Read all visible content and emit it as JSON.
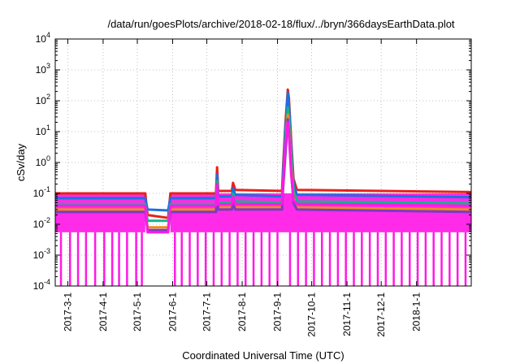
{
  "chart_data": {
    "type": "line",
    "title": "/data/run/goesPlots/archive/2018-02-18/flux/../bryn/366daysEarthData.plot",
    "xlabel": "Coordinated Universal Time (UTC)",
    "ylabel": "cSv/day",
    "yscale": "log",
    "ylim": [
      0.0001,
      10000
    ],
    "xlim": [
      "2017-02-18",
      "2018-02-18"
    ],
    "grid": true,
    "y_ticks": [
      {
        "base": "10",
        "exp": "-4",
        "value": 0.0001
      },
      {
        "base": "10",
        "exp": "-3",
        "value": 0.001
      },
      {
        "base": "10",
        "exp": "-2",
        "value": 0.01
      },
      {
        "base": "10",
        "exp": "-1",
        "value": 0.1
      },
      {
        "base": "10",
        "exp": "0",
        "value": 1
      },
      {
        "base": "10",
        "exp": "1",
        "value": 10
      },
      {
        "base": "10",
        "exp": "2",
        "value": 100
      },
      {
        "base": "10",
        "exp": "3",
        "value": 1000
      },
      {
        "base": "10",
        "exp": "4",
        "value": 10000
      }
    ],
    "x_ticks": [
      {
        "label": "2017-3-1",
        "date": "2017-03-01"
      },
      {
        "label": "2017-4-1",
        "date": "2017-04-01"
      },
      {
        "label": "2017-5-1",
        "date": "2017-05-01"
      },
      {
        "label": "2017-6-1",
        "date": "2017-06-01"
      },
      {
        "label": "2017-7-1",
        "date": "2017-07-01"
      },
      {
        "label": "2017-8-1",
        "date": "2017-08-01"
      },
      {
        "label": "2017-9-1",
        "date": "2017-09-01"
      },
      {
        "label": "2017-10-1",
        "date": "2017-10-01"
      },
      {
        "label": "2017-11-1",
        "date": "2017-11-01"
      },
      {
        "label": "2017-12-1",
        "date": "2017-12-01"
      },
      {
        "label": "2018-1-1",
        "date": "2018-01-01"
      }
    ],
    "series": [
      {
        "color": "#e8211a",
        "points": [
          [
            "2017-02-18",
            0.1
          ],
          [
            "2017-05-08",
            0.1
          ],
          [
            "2017-05-10",
            0.02
          ],
          [
            "2017-05-28",
            0.016
          ],
          [
            "2017-05-30",
            0.1
          ],
          [
            "2017-07-09",
            0.1
          ],
          [
            "2017-07-10",
            0.7
          ],
          [
            "2017-07-11",
            0.12
          ],
          [
            "2017-07-23",
            0.12
          ],
          [
            "2017-07-24",
            0.22
          ],
          [
            "2017-07-26",
            0.13
          ],
          [
            "2017-09-05",
            0.12
          ],
          [
            "2017-09-06",
            0.8
          ],
          [
            "2017-09-08",
            20
          ],
          [
            "2017-09-10",
            230
          ],
          [
            "2017-09-11",
            120
          ],
          [
            "2017-09-13",
            5
          ],
          [
            "2017-09-15",
            0.3
          ],
          [
            "2017-09-18",
            0.13
          ],
          [
            "2018-02-18",
            0.11
          ]
        ]
      },
      {
        "color": "#1f6fe0",
        "points": [
          [
            "2017-02-18",
            0.07
          ],
          [
            "2017-05-08",
            0.07
          ],
          [
            "2017-05-10",
            0.03
          ],
          [
            "2017-05-28",
            0.028
          ],
          [
            "2017-05-30",
            0.07
          ],
          [
            "2017-07-09",
            0.07
          ],
          [
            "2017-07-10",
            0.4
          ],
          [
            "2017-07-11",
            0.08
          ],
          [
            "2017-07-23",
            0.08
          ],
          [
            "2017-07-24",
            0.15
          ],
          [
            "2017-07-26",
            0.09
          ],
          [
            "2017-09-05",
            0.08
          ],
          [
            "2017-09-06",
            0.5
          ],
          [
            "2017-09-08",
            12
          ],
          [
            "2017-09-10",
            180
          ],
          [
            "2017-09-11",
            80
          ],
          [
            "2017-09-13",
            3
          ],
          [
            "2017-09-15",
            0.2
          ],
          [
            "2017-09-18",
            0.09
          ],
          [
            "2018-02-18",
            0.075
          ]
        ]
      },
      {
        "color": "#12b58a",
        "points": [
          [
            "2017-02-18",
            0.045
          ],
          [
            "2017-05-08",
            0.045
          ],
          [
            "2017-05-10",
            0.013
          ],
          [
            "2017-05-28",
            0.013
          ],
          [
            "2017-05-30",
            0.045
          ],
          [
            "2017-07-09",
            0.045
          ],
          [
            "2017-07-10",
            0.25
          ],
          [
            "2017-07-11",
            0.05
          ],
          [
            "2017-07-23",
            0.05
          ],
          [
            "2017-07-24",
            0.1
          ],
          [
            "2017-07-26",
            0.055
          ],
          [
            "2017-09-05",
            0.05
          ],
          [
            "2017-09-06",
            0.3
          ],
          [
            "2017-09-08",
            6
          ],
          [
            "2017-09-10",
            60
          ],
          [
            "2017-09-11",
            30
          ],
          [
            "2017-09-13",
            1.5
          ],
          [
            "2017-09-15",
            0.12
          ],
          [
            "2017-09-18",
            0.055
          ],
          [
            "2018-02-18",
            0.048
          ]
        ]
      },
      {
        "color": "#f08a1c",
        "points": [
          [
            "2017-02-18",
            0.03
          ],
          [
            "2017-05-08",
            0.03
          ],
          [
            "2017-05-10",
            0.008
          ],
          [
            "2017-05-28",
            0.008
          ],
          [
            "2017-05-30",
            0.03
          ],
          [
            "2017-07-09",
            0.03
          ],
          [
            "2017-07-10",
            0.15
          ],
          [
            "2017-07-11",
            0.035
          ],
          [
            "2017-07-23",
            0.035
          ],
          [
            "2017-07-24",
            0.06
          ],
          [
            "2017-07-26",
            0.035
          ],
          [
            "2017-09-05",
            0.035
          ],
          [
            "2017-09-06",
            0.2
          ],
          [
            "2017-09-08",
            3
          ],
          [
            "2017-09-10",
            35
          ],
          [
            "2017-09-11",
            15
          ],
          [
            "2017-09-13",
            0.8
          ],
          [
            "2017-09-15",
            0.07
          ],
          [
            "2017-09-18",
            0.035
          ],
          [
            "2018-02-18",
            0.03
          ]
        ]
      },
      {
        "color": "#7a3cc4",
        "points": [
          [
            "2017-02-18",
            0.025
          ],
          [
            "2017-05-08",
            0.025
          ],
          [
            "2017-05-10",
            0.0065
          ],
          [
            "2017-05-28",
            0.0065
          ],
          [
            "2017-05-30",
            0.025
          ],
          [
            "2017-07-09",
            0.025
          ],
          [
            "2017-07-10",
            0.12
          ],
          [
            "2017-07-11",
            0.03
          ],
          [
            "2017-07-23",
            0.03
          ],
          [
            "2017-07-24",
            0.05
          ],
          [
            "2017-07-26",
            0.03
          ],
          [
            "2017-09-05",
            0.03
          ],
          [
            "2017-09-06",
            0.15
          ],
          [
            "2017-09-08",
            2
          ],
          [
            "2017-09-10",
            25
          ],
          [
            "2017-09-11",
            10
          ],
          [
            "2017-09-13",
            0.5
          ],
          [
            "2017-09-15",
            0.05
          ],
          [
            "2017-09-18",
            0.03
          ],
          [
            "2018-02-18",
            0.025
          ]
        ]
      },
      {
        "color": "#ff19e6",
        "points": [
          [
            "2017-02-18",
            0.04
          ],
          [
            "2017-05-08",
            0.04
          ],
          [
            "2017-05-10",
            0.0055
          ],
          [
            "2017-05-28",
            0.0055
          ],
          [
            "2017-05-30",
            0.04
          ],
          [
            "2017-07-09",
            0.04
          ],
          [
            "2017-07-10",
            0.2
          ],
          [
            "2017-07-11",
            0.045
          ],
          [
            "2017-07-23",
            0.045
          ],
          [
            "2017-07-24",
            0.08
          ],
          [
            "2017-07-26",
            0.045
          ],
          [
            "2017-09-05",
            0.045
          ],
          [
            "2017-09-06",
            0.25
          ],
          [
            "2017-09-08",
            4
          ],
          [
            "2017-09-10",
            20
          ],
          [
            "2017-09-11",
            8
          ],
          [
            "2017-09-13",
            0.4
          ],
          [
            "2017-09-15",
            0.06
          ],
          [
            "2017-09-18",
            0.045
          ],
          [
            "2018-02-18",
            0.04
          ]
        ]
      }
    ],
    "noise_band": {
      "color": "#ff19e6",
      "floor": 0.0055,
      "top": 0.1,
      "ranges": [
        [
          "2017-02-18",
          "2017-05-08"
        ],
        [
          "2017-05-30",
          "2018-02-18"
        ]
      ]
    },
    "dropouts": [
      "2017-02-23",
      "2017-03-03",
      "2017-03-10",
      "2017-03-17",
      "2017-03-25",
      "2017-04-02",
      "2017-04-09",
      "2017-04-15",
      "2017-04-22",
      "2017-04-30",
      "2017-05-05",
      "2017-06-03",
      "2017-06-09",
      "2017-06-16",
      "2017-06-23",
      "2017-06-30",
      "2017-07-07",
      "2017-07-14",
      "2017-07-21",
      "2017-07-28",
      "2017-08-04",
      "2017-08-11",
      "2017-08-18",
      "2017-08-25",
      "2017-09-01",
      "2017-09-12",
      "2017-09-19",
      "2017-09-26",
      "2017-10-03",
      "2017-10-10",
      "2017-10-17",
      "2017-10-24",
      "2017-10-31",
      "2017-11-07",
      "2017-11-14",
      "2017-11-21",
      "2017-11-28",
      "2017-12-05",
      "2017-12-12",
      "2017-12-19",
      "2017-12-26",
      "2018-01-02",
      "2018-01-09",
      "2018-01-16",
      "2018-01-23",
      "2018-01-30",
      "2018-02-06",
      "2018-02-13"
    ]
  }
}
